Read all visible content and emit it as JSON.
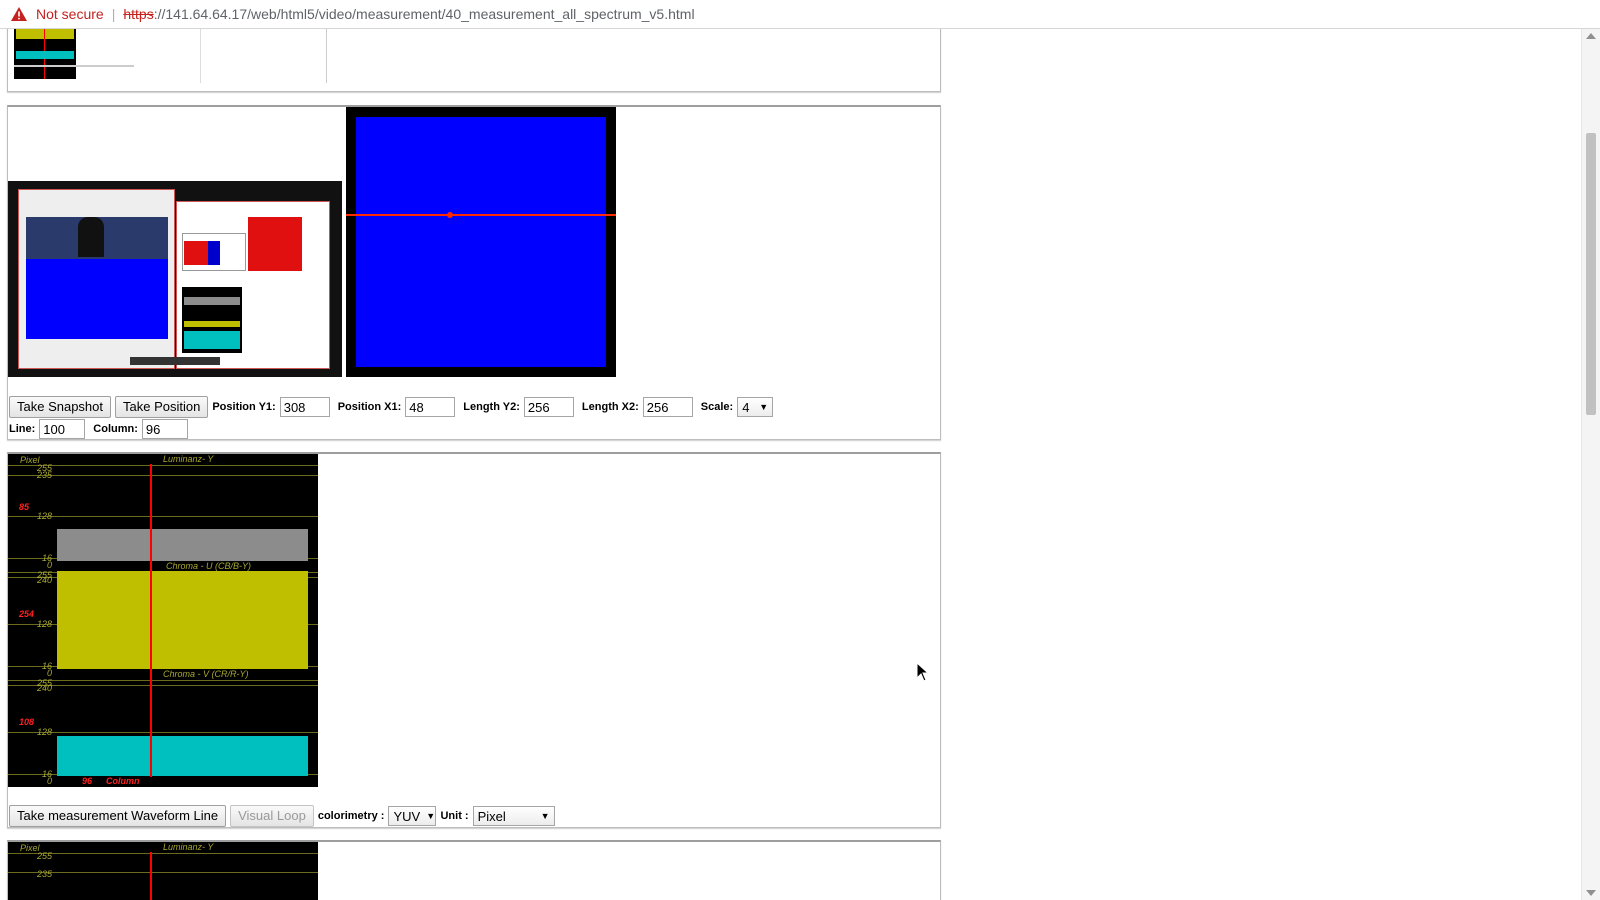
{
  "browser": {
    "security_label": "Not secure",
    "url_scheme": "https",
    "url_rest": "://141.64.64.17/web/html5/video/measurement/40_measurement_all_spectrum_v5.html"
  },
  "snapshot_panel": {
    "take_snapshot": "Take Snapshot",
    "take_position": "Take Position",
    "pos_y1_label": "Position Y1:",
    "pos_y1_value": "308",
    "pos_x1_label": "Position X1:",
    "pos_x1_value": "48",
    "len_y2_label": "Length Y2:",
    "len_y2_value": "256",
    "len_x2_label": "Length X2:",
    "len_x2_value": "256",
    "scale_label": "Scale:",
    "scale_value": "4",
    "line_label": "Line:",
    "line_value": "100",
    "column_label": "Column:",
    "column_value": "96"
  },
  "waveform_panel": {
    "y_unit": "Pixel",
    "x_unit": "Column",
    "column_marker": "96",
    "sections": [
      {
        "title": "Luminanz- Y",
        "ticks": [
          "255",
          "235",
          "128",
          "16",
          "0"
        ],
        "value": "85",
        "color": "#8c8c8c"
      },
      {
        "title": "Chroma - U (CB/B-Y)",
        "ticks": [
          "255",
          "240",
          "128",
          "16",
          "0"
        ],
        "value": "254",
        "color": "#bfbf00"
      },
      {
        "title": "Chroma - V (CR/R-Y)",
        "ticks": [
          "255",
          "240",
          "128",
          "16",
          "0"
        ],
        "value": "108",
        "color": "#00bfbf"
      }
    ],
    "take_waveform": "Take measurement Waveform Line",
    "visual_loop": "Visual Loop",
    "colorimetry_label": "colorimetry :",
    "colorimetry_value": "YUV",
    "unit_label": "Unit :",
    "unit_value": "Pixel"
  },
  "next_panel": {
    "y_unit": "Pixel",
    "title": "Luminanz- Y",
    "ticks": [
      "255",
      "235"
    ]
  },
  "colors": {
    "accent_blue": "#0000ff",
    "marker_red": "#ff0000",
    "not_secure_red": "#c5221f"
  }
}
